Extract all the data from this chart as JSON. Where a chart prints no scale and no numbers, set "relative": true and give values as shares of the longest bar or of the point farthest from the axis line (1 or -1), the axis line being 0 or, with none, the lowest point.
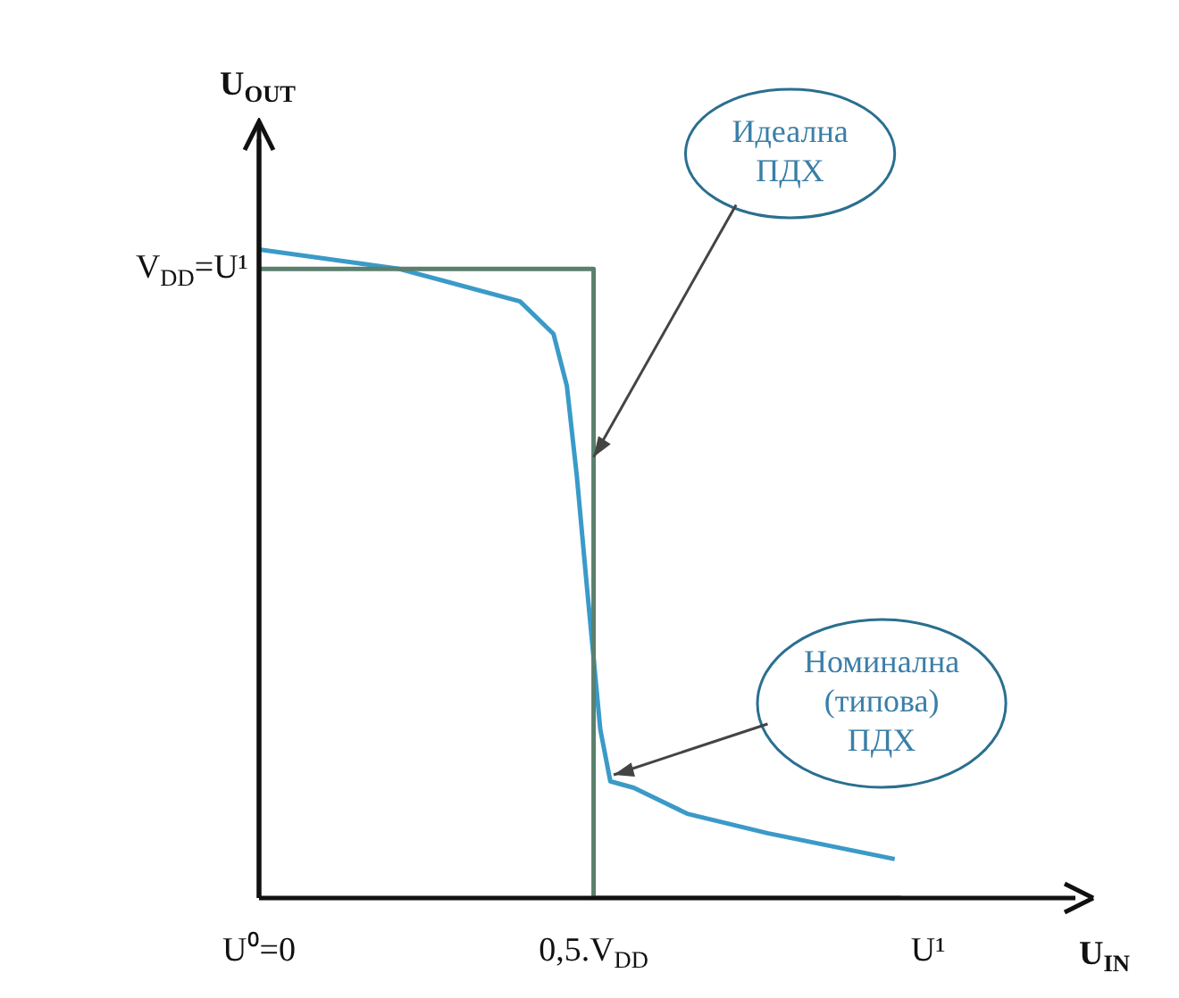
{
  "chart_data": {
    "type": "line",
    "xlabel": "U$_{IN}$",
    "ylabel": "U$_{OUT}$",
    "relative": true,
    "xlim": [
      0,
      1.22
    ],
    "xticks": [
      {
        "value": 0,
        "label": "U⁰=0"
      },
      {
        "value": 0.5,
        "label": "0,5.V$_{DD}$"
      },
      {
        "value": 1,
        "label": "U¹"
      }
    ],
    "grid": false,
    "legend": false,
    "marker": "none",
    "line_style": "solid",
    "series": [
      {
        "color": "#5b7f6e",
        "x": [
          0,
          0.5,
          0.5,
          0.96
        ],
        "values": [
          0.97,
          0.97,
          0,
          0
        ]
      },
      {
        "color": "#3a9ac8",
        "x": [
          0,
          0.21,
          0.39,
          0.44,
          0.46,
          0.475,
          0.49,
          0.51,
          0.525,
          0.56,
          0.64,
          0.76,
          0.95
        ],
        "values": [
          1,
          0.97,
          0.92,
          0.87,
          0.79,
          0.65,
          0.48,
          0.26,
          0.18,
          0.17,
          0.13,
          0.1,
          0.06
        ]
      }
    ],
    "annotations": [
      {
        "text": "V$_{DD}$=U¹",
        "x": 0,
        "y": 0.97
      },
      {
        "text": "Идеална ПДХ",
        "x": 0.5,
        "y": 0.68
      },
      {
        "text": "Номинална (типова) ПДХ",
        "x": 0.53,
        "y": 0.19
      }
    ]
  }
}
